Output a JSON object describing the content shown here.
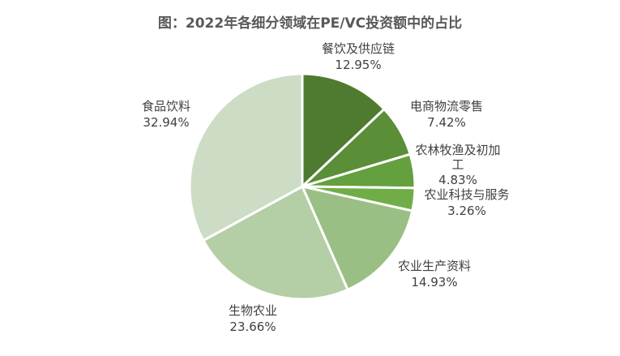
{
  "chart_data": {
    "type": "pie",
    "title": "图：2022年各细分领域在PE/VC投资额中的占比",
    "start_angle": "12 o'clock",
    "direction": "clockwise",
    "slices": [
      {
        "label": "餐饮及供应链",
        "value": 12.95,
        "display": "12.95%",
        "color": "#4e7b2f"
      },
      {
        "label": "电商物流零售",
        "value": 7.42,
        "display": "7.42%",
        "color": "#5a8e37"
      },
      {
        "label": "农林牧渔及初加工",
        "value": 4.83,
        "display": "4.83%",
        "color": "#64a03e"
      },
      {
        "label": "农业科技与服务",
        "value": 3.26,
        "display": "3.26%",
        "color": "#70ad47"
      },
      {
        "label": "农业生产资料",
        "value": 14.93,
        "display": "14.93%",
        "color": "#9abf84"
      },
      {
        "label": "生物农业",
        "value": 23.66,
        "display": "23.66%",
        "color": "#b4cea6"
      },
      {
        "label": "食品饮料",
        "value": 32.94,
        "display": "32.94%",
        "color": "#cddcc4"
      }
    ],
    "legend": "none"
  }
}
